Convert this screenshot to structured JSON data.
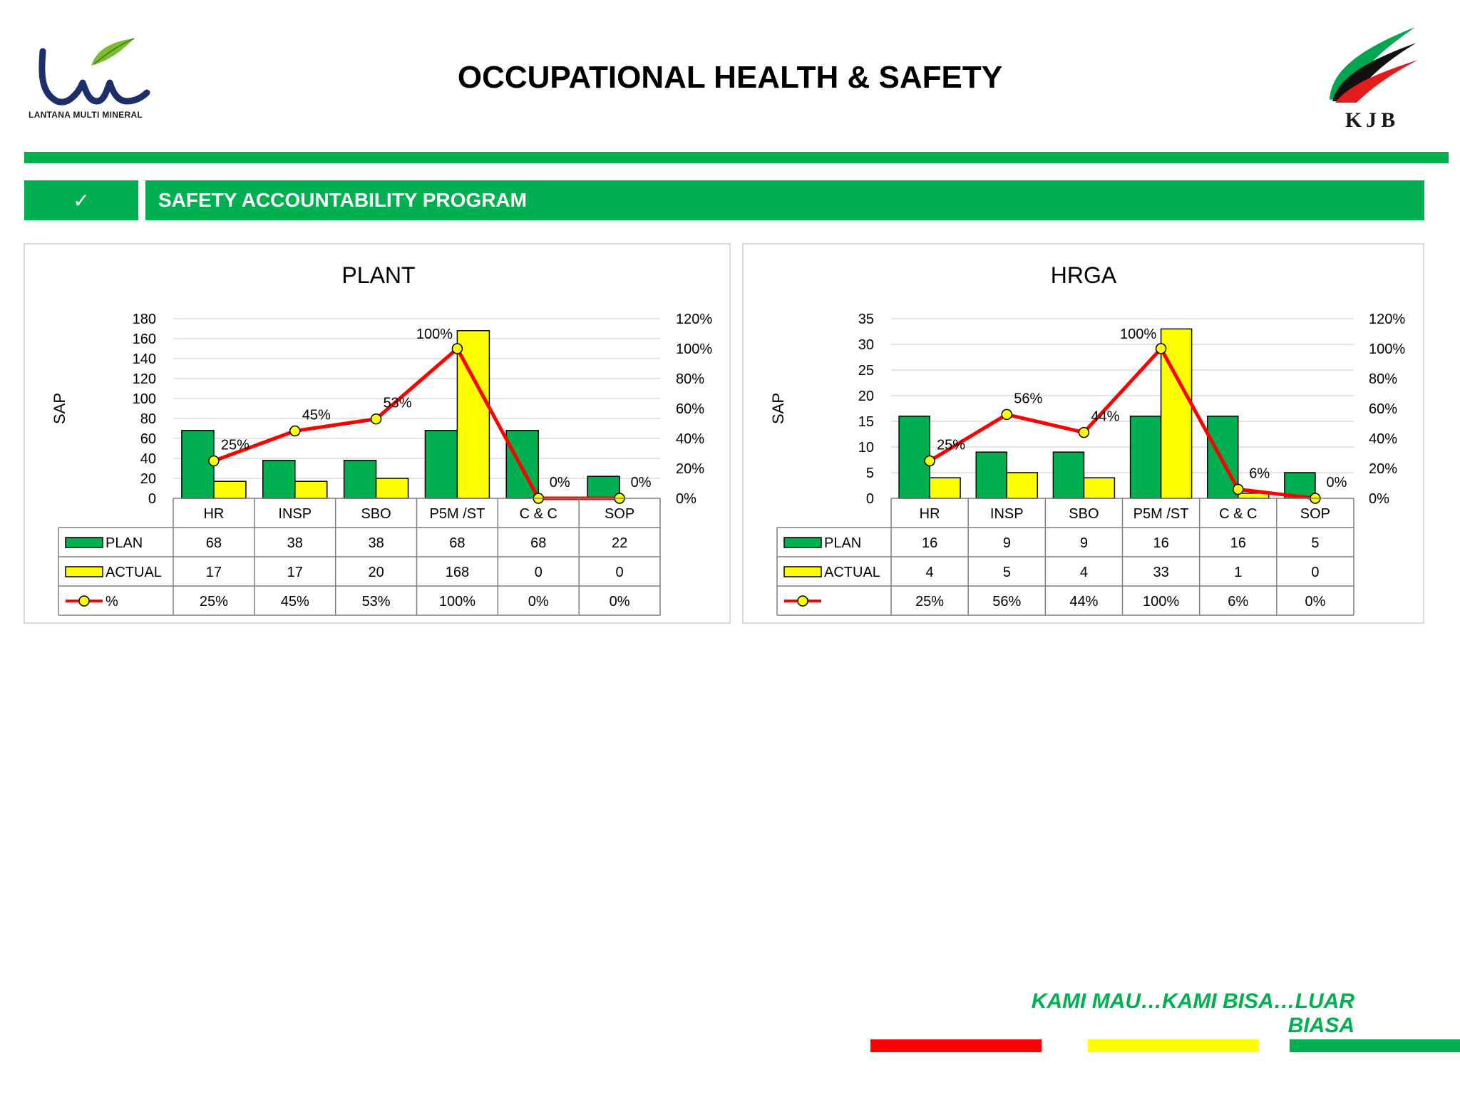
{
  "header": {
    "title": "OCCUPATIONAL HEALTH & SAFETY",
    "left_logo_text": "LANTANA MULTI MINERAL",
    "right_logo_text": "KJB"
  },
  "section": {
    "check_mark": "✓",
    "title": "SAFETY ACCOUNTABILITY PROGRAM"
  },
  "colors": {
    "brand_green": "#00b050",
    "plan_green": "#00b050",
    "actual_yellow": "#ffff00",
    "percent_red": "#ff0000",
    "marker_yellow": "#ffff00"
  },
  "footer": {
    "tagline": "KAMI MAU…KAMI BISA…LUAR BIASA"
  },
  "chart_data": [
    {
      "type": "bar",
      "title": "PLANT",
      "ylabel": "SAP",
      "categories": [
        "HR",
        "INSP",
        "SBO",
        "P5M /ST",
        "C & C",
        "SOP"
      ],
      "ylim": [
        0,
        180
      ],
      "y_ticks": [
        "0",
        "20",
        "40",
        "60",
        "80",
        "100",
        "120",
        "140",
        "160",
        "180"
      ],
      "y2lim": [
        0,
        1.2
      ],
      "y2_ticks": [
        "0%",
        "20%",
        "40%",
        "60%",
        "80%",
        "100%",
        "120%"
      ],
      "grid": true,
      "series": [
        {
          "name": "PLAN",
          "kind": "bar",
          "axis": "left",
          "values": [
            68,
            38,
            38,
            68,
            68,
            22
          ],
          "labels": [
            "68",
            "38",
            "38",
            "68",
            "68",
            "22"
          ]
        },
        {
          "name": "ACTUAL",
          "kind": "bar",
          "axis": "left",
          "values": [
            17,
            17,
            20,
            168,
            0,
            0
          ],
          "labels": [
            "17",
            "17",
            "20",
            "168",
            "0",
            "0"
          ]
        },
        {
          "name": "%",
          "kind": "line",
          "axis": "right",
          "values": [
            0.25,
            0.45,
            0.53,
            1.0,
            0.0,
            0.0
          ],
          "labels": [
            "25%",
            "45%",
            "53%",
            "100%",
            "0%",
            "0%"
          ]
        }
      ]
    },
    {
      "type": "bar",
      "title": "HRGA",
      "ylabel": "SAP",
      "categories": [
        "HR",
        "INSP",
        "SBO",
        "P5M /ST",
        "C & C",
        "SOP"
      ],
      "ylim": [
        0,
        35
      ],
      "y_ticks": [
        "0",
        "5",
        "10",
        "15",
        "20",
        "25",
        "30",
        "35"
      ],
      "y2lim": [
        0,
        1.2
      ],
      "y2_ticks": [
        "0%",
        "20%",
        "40%",
        "60%",
        "80%",
        "100%",
        "120%"
      ],
      "grid": true,
      "series": [
        {
          "name": "PLAN",
          "kind": "bar",
          "axis": "left",
          "values": [
            16,
            9,
            9,
            16,
            16,
            5
          ],
          "labels": [
            "16",
            "9",
            "9",
            "16",
            "16",
            "5"
          ]
        },
        {
          "name": "ACTUAL",
          "kind": "bar",
          "axis": "left",
          "values": [
            4,
            5,
            4,
            33,
            1,
            0
          ],
          "labels": [
            "4",
            "5",
            "4",
            "33",
            "1",
            "0"
          ]
        },
        {
          "name": "",
          "kind": "line",
          "axis": "right",
          "values": [
            0.25,
            0.56,
            0.44,
            1.0,
            0.06,
            0.0
          ],
          "labels": [
            "25%",
            "56%",
            "44%",
            "100%",
            "6%",
            "0%"
          ]
        }
      ]
    }
  ]
}
